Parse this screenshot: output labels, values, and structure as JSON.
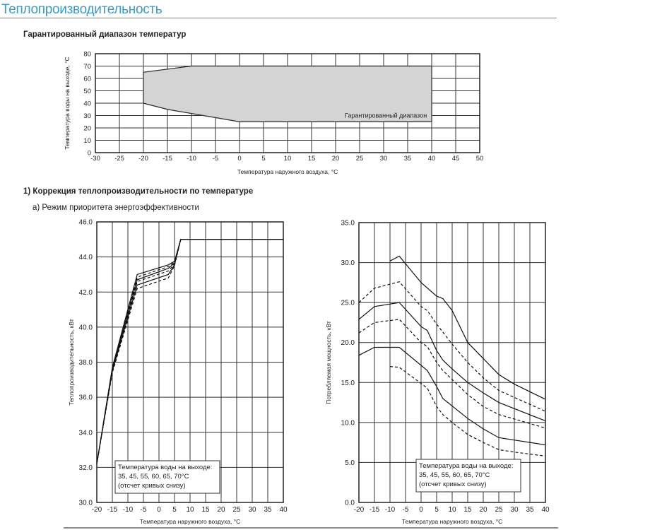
{
  "page": {
    "title": "Теплопроизводительность",
    "section_range": "Гарантированный диапазон температур",
    "section_correction": "1) Коррекция теплопроизводительности по температуре",
    "subsection_a": "а) Режим приоритета энергоэффективности",
    "accent_color": "#3a9bc8"
  },
  "chart_data": [
    {
      "type": "area",
      "title": "Гарантированный диапазон температур",
      "xlabel": "Температура наружного воздуха, °C",
      "ylabel": "Температура воды на выходе, °C",
      "xlim": [
        -30,
        50
      ],
      "ylim": [
        0,
        80
      ],
      "xticks": [
        -30,
        -25,
        -20,
        -15,
        -10,
        -5,
        0,
        5,
        10,
        15,
        20,
        25,
        30,
        35,
        40,
        45,
        50
      ],
      "yticks": [
        0,
        10,
        20,
        30,
        40,
        50,
        60,
        70,
        80
      ],
      "grid": true,
      "region_label": "Гарантированный диапазон",
      "region": [
        [
          -20,
          40
        ],
        [
          -15,
          35
        ],
        [
          0,
          25
        ],
        [
          40,
          25
        ],
        [
          40,
          70
        ],
        [
          -10,
          70
        ],
        [
          -20,
          65
        ]
      ],
      "fill_color": "#d4d4d4"
    },
    {
      "type": "line",
      "xlabel": "Температура наружного воздуха, °C",
      "ylabel": "Теплопроизводительность, кВт",
      "xlim": [
        -20,
        40
      ],
      "ylim": [
        30,
        46
      ],
      "xticks": [
        "-20",
        "-15",
        "-10",
        "-5",
        "0",
        "5",
        "10",
        "15",
        "20",
        "25",
        "30",
        "35",
        "40"
      ],
      "yticks": [
        "30.0",
        "32.0",
        "34.0",
        "36.0",
        "38.0",
        "40.0",
        "42.0",
        "44.0",
        "46.0"
      ],
      "grid": true,
      "legend": [
        "Температура воды на выходе:",
        "35, 45, 55, 60, 65, 70°C",
        "(отсчет кривых снизу)"
      ],
      "series": [
        {
          "name": "35°C",
          "dash": true,
          "points": [
            [
              -20,
              32.2
            ],
            [
              -15,
              37.4
            ],
            [
              -7,
              42.2
            ],
            [
              3,
              42.8
            ],
            [
              5,
              43.5
            ],
            [
              7,
              45
            ],
            [
              40,
              45
            ]
          ]
        },
        {
          "name": "45°C",
          "dash": false,
          "points": [
            [
              -20,
              32.2
            ],
            [
              -15,
              37.5
            ],
            [
              -7,
              42.4
            ],
            [
              3,
              43.0
            ],
            [
              5,
              43.55
            ],
            [
              7,
              45
            ],
            [
              40,
              45
            ]
          ]
        },
        {
          "name": "55°C",
          "dash": true,
          "points": [
            [
              -20,
              32.2
            ],
            [
              -15,
              37.5
            ],
            [
              -7,
              42.6
            ],
            [
              3,
              43.2
            ],
            [
              5,
              43.6
            ],
            [
              7,
              45
            ],
            [
              40,
              45
            ]
          ]
        },
        {
          "name": "60°C",
          "dash": false,
          "points": [
            [
              -20,
              32.2
            ],
            [
              -15,
              37.6
            ],
            [
              -7,
              42.7
            ],
            [
              3,
              43.35
            ],
            [
              5,
              43.65
            ],
            [
              7,
              45
            ],
            [
              40,
              45
            ]
          ]
        },
        {
          "name": "65°C",
          "dash": true,
          "points": [
            [
              -20,
              32.2
            ],
            [
              -15,
              37.6
            ],
            [
              -7,
              42.85
            ],
            [
              3,
              43.45
            ],
            [
              5,
              43.7
            ],
            [
              7,
              45
            ],
            [
              40,
              45
            ]
          ]
        },
        {
          "name": "70°C",
          "dash": false,
          "points": [
            [
              -20,
              32.2
            ],
            [
              -15,
              37.7
            ],
            [
              -7,
              43.0
            ],
            [
              3,
              43.55
            ],
            [
              5,
              43.75
            ],
            [
              7,
              45
            ],
            [
              40,
              45
            ]
          ]
        }
      ]
    },
    {
      "type": "line",
      "xlabel": "Температура наружного воздуха, °C",
      "ylabel": "Потребляемая мощность, кВт",
      "xlim": [
        -20,
        40
      ],
      "ylim": [
        0,
        35
      ],
      "xticks": [
        "-20",
        "-15",
        "-10",
        "-5",
        "0",
        "5",
        "10",
        "15",
        "20",
        "25",
        "30",
        "35",
        "40"
      ],
      "yticks": [
        "0.0",
        "5.0",
        "10.0",
        "15.0",
        "20.0",
        "25.0",
        "30.0",
        "35.0"
      ],
      "grid": true,
      "legend": [
        "Температура воды на выходе:",
        "35, 45, 55, 60, 65, 70°C",
        "(отсчет кривых снизу)"
      ],
      "series": [
        {
          "name": "35°C",
          "dash": true,
          "points": [
            [
              -10,
              17
            ],
            [
              -7,
              16.9
            ],
            [
              2,
              14.3
            ],
            [
              5,
              12
            ],
            [
              7,
              11
            ],
            [
              10,
              10
            ],
            [
              15,
              8.5
            ],
            [
              20,
              7.5
            ],
            [
              25,
              6.6
            ],
            [
              30,
              6.3
            ],
            [
              40,
              5.8
            ]
          ]
        },
        {
          "name": "45°C",
          "dash": false,
          "points": [
            [
              -20,
              18.4
            ],
            [
              -15,
              19.4
            ],
            [
              -7,
              19.4
            ],
            [
              2,
              16.5
            ],
            [
              5,
              14.5
            ],
            [
              7,
              13
            ],
            [
              15,
              10.5
            ],
            [
              20,
              9.2
            ],
            [
              25,
              8.1
            ],
            [
              40,
              7.2
            ]
          ]
        },
        {
          "name": "55°C",
          "dash": true,
          "points": [
            [
              -20,
              21.2
            ],
            [
              -15,
              22.5
            ],
            [
              -7,
              22.9
            ],
            [
              0,
              20
            ],
            [
              2,
              19.5
            ],
            [
              5,
              17.5
            ],
            [
              7,
              16.5
            ],
            [
              15,
              13.5
            ],
            [
              20,
              12
            ],
            [
              25,
              11
            ],
            [
              40,
              9.3
            ]
          ]
        },
        {
          "name": "60°C",
          "dash": false,
          "points": [
            [
              -20,
              22.9
            ],
            [
              -15,
              24.5
            ],
            [
              -7,
              25
            ],
            [
              0,
              22
            ],
            [
              2,
              21.5
            ],
            [
              5,
              19
            ],
            [
              7,
              17.8
            ],
            [
              10,
              16.7
            ],
            [
              15,
              15
            ],
            [
              20,
              13.7
            ],
            [
              25,
              12.5
            ],
            [
              40,
              10.2
            ]
          ]
        },
        {
          "name": "65°C",
          "dash": true,
          "points": [
            [
              -20,
              25
            ],
            [
              -15,
              26.8
            ],
            [
              -7,
              27.6
            ],
            [
              0,
              24.5
            ],
            [
              2,
              24
            ],
            [
              5,
              22.3
            ],
            [
              7,
              21.3
            ],
            [
              10,
              19.8
            ],
            [
              15,
              17.5
            ],
            [
              20,
              15.6
            ],
            [
              25,
              14
            ],
            [
              40,
              11.4
            ]
          ]
        },
        {
          "name": "70°C",
          "dash": false,
          "points": [
            [
              -10,
              30.2
            ],
            [
              -7,
              30.8
            ],
            [
              0,
              27.5
            ],
            [
              5,
              25.8
            ],
            [
              7,
              25.5
            ],
            [
              10,
              24
            ],
            [
              15,
              20
            ],
            [
              20,
              18
            ],
            [
              25,
              16
            ],
            [
              30,
              14.8
            ],
            [
              40,
              12.9
            ]
          ]
        }
      ]
    }
  ]
}
